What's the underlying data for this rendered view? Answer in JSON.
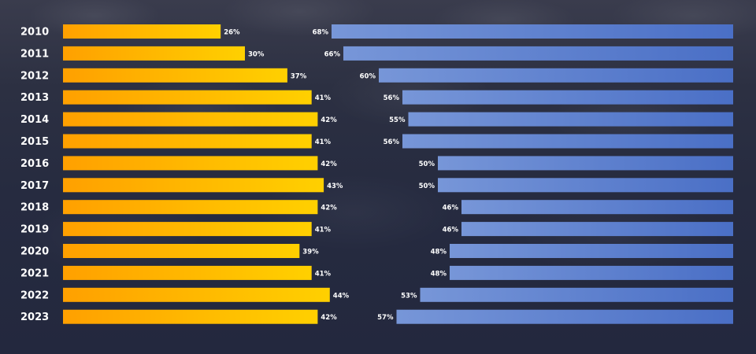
{
  "colors": {
    "left_bar_start": "#ffa000",
    "left_bar_end": "#ffd000",
    "right_bar_start": "#7796d8",
    "right_bar_end": "#4a6fc6"
  },
  "chart_data": {
    "type": "bar",
    "orientation": "horizontal",
    "categories": [
      "2010",
      "2011",
      "2012",
      "2013",
      "2014",
      "2015",
      "2016",
      "2017",
      "2018",
      "2019",
      "2020",
      "2021",
      "2022",
      "2023"
    ],
    "series": [
      {
        "values": [
          26,
          30,
          37,
          41,
          42,
          41,
          42,
          43,
          42,
          41,
          39,
          41,
          44,
          42
        ],
        "labels": [
          "26%",
          "30%",
          "37%",
          "41%",
          "42%",
          "41%",
          "42%",
          "43%",
          "42%",
          "41%",
          "39%",
          "41%",
          "44%",
          "42%"
        ],
        "color": "#ffb000",
        "anchor": "left"
      },
      {
        "values": [
          68,
          66,
          60,
          56,
          55,
          56,
          50,
          50,
          46,
          46,
          48,
          48,
          53,
          57
        ],
        "labels": [
          "68%",
          "66%",
          "60%",
          "56%",
          "55%",
          "56%",
          "50%",
          "50%",
          "46%",
          "46%",
          "48%",
          "48%",
          "53%",
          "57%"
        ],
        "color": "#5a7fcf",
        "anchor": "right"
      }
    ],
    "title": "",
    "xlabel": "",
    "ylabel": "",
    "grid": false,
    "legend": "none"
  }
}
